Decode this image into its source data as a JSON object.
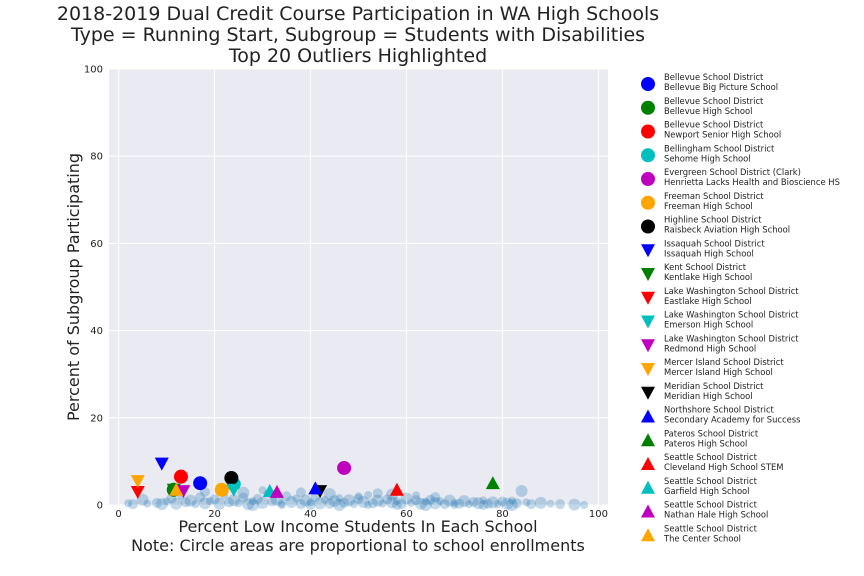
{
  "chart_data": {
    "type": "scatter",
    "title": [
      "2018-2019 Dual Credit Course Participation in WA High Schools",
      "Type = Running Start, Subgroup = Students with Disabilities",
      "Top 20 Outliers Highlighted"
    ],
    "xlabel": "Percent Low Income Students In Each School",
    "xlabel_note": "Note: Circle areas are proportional to school enrollments",
    "ylabel": "Percent of Subgroup Participating",
    "xlim": [
      -2,
      102
    ],
    "ylim": [
      0,
      100
    ],
    "xticks": [
      0,
      20,
      40,
      60,
      80,
      100
    ],
    "yticks": [
      0,
      20,
      40,
      60,
      80,
      100
    ],
    "grid": true,
    "background_color": "#EAEAF2",
    "legend_position": "outside-right",
    "background_series": {
      "color": "#1f77b4",
      "opacity": 0.28,
      "points": [
        [
          2,
          0.4
        ],
        [
          3,
          0.2
        ],
        [
          5,
          1.2
        ],
        [
          6,
          0.3
        ],
        [
          8,
          0.5
        ],
        [
          9,
          0.2
        ],
        [
          10,
          0.8
        ],
        [
          11,
          1.5
        ],
        [
          12,
          0.3
        ],
        [
          13,
          2.1
        ],
        [
          14,
          0.6
        ],
        [
          15,
          1.0
        ],
        [
          16,
          0.2
        ],
        [
          17,
          1.8
        ],
        [
          18,
          0.4
        ],
        [
          19,
          0.9
        ],
        [
          20,
          1.3
        ],
        [
          21,
          0.3
        ],
        [
          22,
          2.2
        ],
        [
          23,
          0.6
        ],
        [
          24,
          1.1
        ],
        [
          25,
          0.4
        ],
        [
          26,
          1.7
        ],
        [
          27,
          0.2
        ],
        [
          28,
          0.9
        ],
        [
          29,
          1.4
        ],
        [
          30,
          0.5
        ],
        [
          31,
          2.6
        ],
        [
          32,
          0.8
        ],
        [
          33,
          1.2
        ],
        [
          34,
          0.3
        ],
        [
          35,
          2.0
        ],
        [
          36,
          0.7
        ],
        [
          37,
          1.5
        ],
        [
          38,
          0.2
        ],
        [
          39,
          1.0
        ],
        [
          40,
          0.6
        ],
        [
          41,
          1.8
        ],
        [
          42,
          0.4
        ],
        [
          43,
          1.2
        ],
        [
          44,
          0.3
        ],
        [
          45,
          0.9
        ],
        [
          46,
          1.6
        ],
        [
          47,
          0.5
        ],
        [
          48,
          1.1
        ],
        [
          49,
          0.2
        ],
        [
          50,
          1.4
        ],
        [
          51,
          0.7
        ],
        [
          52,
          2.3
        ],
        [
          53,
          0.4
        ],
        [
          54,
          1.0
        ],
        [
          55,
          0.3
        ],
        [
          56,
          1.3
        ],
        [
          57,
          0.6
        ],
        [
          58,
          0.9
        ],
        [
          59,
          0.2
        ],
        [
          60,
          1.5
        ],
        [
          61,
          0.5
        ],
        [
          62,
          1.1
        ],
        [
          63,
          0.3
        ],
        [
          64,
          0.8
        ],
        [
          65,
          1.2
        ],
        [
          66,
          0.4
        ],
        [
          67,
          0.9
        ],
        [
          68,
          0.2
        ],
        [
          69,
          1.0
        ],
        [
          70,
          0.5
        ],
        [
          71,
          0.3
        ],
        [
          72,
          0.9
        ],
        [
          73,
          0.2
        ],
        [
          74,
          0.7
        ],
        [
          75,
          0.4
        ],
        [
          76,
          1.1
        ],
        [
          77,
          0.3
        ],
        [
          78,
          0.6
        ],
        [
          79,
          0.2
        ],
        [
          80,
          0.8
        ],
        [
          81,
          0.3
        ],
        [
          82,
          1.0
        ],
        [
          83,
          0.4
        ],
        [
          84,
          3.2
        ],
        [
          85,
          0.6
        ],
        [
          86,
          0.2
        ],
        [
          88,
          0.5
        ],
        [
          90,
          0.3
        ],
        [
          92,
          0.2
        ],
        [
          95,
          0.1
        ],
        [
          97,
          0.0
        ],
        [
          18,
          3.0
        ],
        [
          26,
          2.8
        ],
        [
          30,
          3.4
        ],
        [
          38,
          2.9
        ],
        [
          44,
          2.5
        ],
        [
          50,
          2.0
        ],
        [
          54,
          2.7
        ],
        [
          57,
          2.4
        ],
        [
          62,
          2.2
        ],
        [
          66,
          1.8
        ],
        [
          28,
          0.0
        ],
        [
          34,
          0.0
        ],
        [
          40,
          0.0
        ],
        [
          46,
          0.0
        ],
        [
          52,
          0.0
        ],
        [
          58,
          0.0
        ],
        [
          64,
          0.0
        ],
        [
          70,
          0.0
        ],
        [
          76,
          0.0
        ],
        [
          82,
          0.0
        ]
      ]
    },
    "series": [
      {
        "name": "Bellevue School District\nBellevue Big Picture School",
        "color": "#0000FF",
        "marker": "circle",
        "x": 17,
        "y": 5
      },
      {
        "name": "Bellevue School District\nBellevue High School",
        "color": "#008000",
        "marker": "circle",
        "x": 11.5,
        "y": 3.5
      },
      {
        "name": "Bellevue School District\nNewport Senior High School",
        "color": "#FF0000",
        "marker": "circle",
        "x": 13,
        "y": 6.5
      },
      {
        "name": "Bellingham School District\nSehome High School",
        "color": "#00BFBF",
        "marker": "circle",
        "x": 24,
        "y": 4.8
      },
      {
        "name": "Evergreen School District (Clark)\nHenrietta Lacks Health and Bioscience HS",
        "color": "#BF00BF",
        "marker": "circle",
        "x": 47,
        "y": 8.5
      },
      {
        "name": "Freeman School District\nFreeman High School",
        "color": "#FFA500",
        "marker": "circle",
        "x": 21.5,
        "y": 3.5
      },
      {
        "name": "Highline School District\nRaisbeck Aviation High School",
        "color": "#000000",
        "marker": "circle",
        "x": 23.5,
        "y": 6.2
      },
      {
        "name": "Issaquah School District\nIssaquah High School",
        "color": "#0000FF",
        "marker": "triangle-down",
        "x": 9,
        "y": 9.5
      },
      {
        "name": "Kent School District\nKentlake High School",
        "color": "#008000",
        "marker": "triangle-down",
        "x": 11.5,
        "y": 3.5
      },
      {
        "name": "Lake Washington School District\nEastlake High School",
        "color": "#FF0000",
        "marker": "triangle-down",
        "x": 4,
        "y": 3
      },
      {
        "name": "Lake Washington School District\nEmerson High School",
        "color": "#00BFBF",
        "marker": "triangle-down",
        "x": 24,
        "y": 3.5
      },
      {
        "name": "Lake Washington School District\nRedmond High School",
        "color": "#BF00BF",
        "marker": "triangle-down",
        "x": 13.5,
        "y": 3.2
      },
      {
        "name": "Mercer Island School District\nMercer Island High School",
        "color": "#FFA500",
        "marker": "triangle-down",
        "x": 4,
        "y": 5.5
      },
      {
        "name": "Meridian School District\nMeridian High School",
        "color": "#000000",
        "marker": "triangle-down",
        "x": 42,
        "y": 3.2
      },
      {
        "name": "Northshore School District\nSecondary Academy for Success",
        "color": "#0000FF",
        "marker": "triangle-up",
        "x": 41,
        "y": 3.8
      },
      {
        "name": "Pateros School District\nPateros High School",
        "color": "#008000",
        "marker": "triangle-up",
        "x": 78,
        "y": 5
      },
      {
        "name": "Seattle School District\nCleveland High School STEM",
        "color": "#FF0000",
        "marker": "triangle-up",
        "x": 58,
        "y": 3.5
      },
      {
        "name": "Seattle School District\nGarfield High School",
        "color": "#00BFBF",
        "marker": "triangle-up",
        "x": 31.5,
        "y": 3.2
      },
      {
        "name": "Seattle School District\nNathan Hale High School",
        "color": "#BF00BF",
        "marker": "triangle-up",
        "x": 33,
        "y": 3
      },
      {
        "name": "Seattle School District\nThe Center School",
        "color": "#FFA500",
        "marker": "triangle-up",
        "x": 12,
        "y": 3.5
      }
    ]
  }
}
